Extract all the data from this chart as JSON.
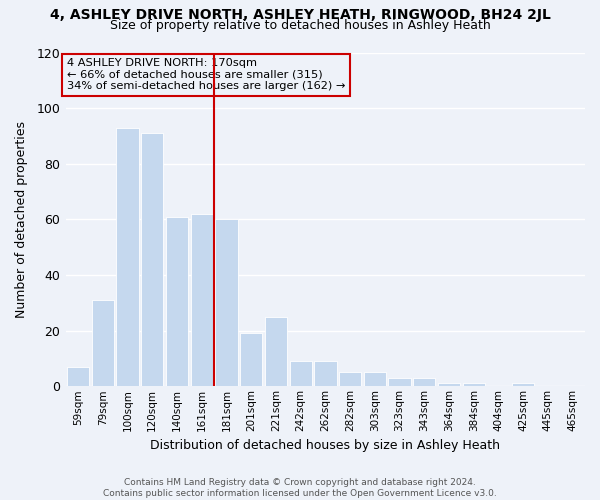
{
  "title": "4, ASHLEY DRIVE NORTH, ASHLEY HEATH, RINGWOOD, BH24 2JL",
  "subtitle": "Size of property relative to detached houses in Ashley Heath",
  "xlabel": "Distribution of detached houses by size in Ashley Heath",
  "ylabel": "Number of detached properties",
  "annotation_line1": "4 ASHLEY DRIVE NORTH: 170sqm",
  "annotation_line2": "← 66% of detached houses are smaller (315)",
  "annotation_line3": "34% of semi-detached houses are larger (162) →",
  "bar_color": "#c5d8ee",
  "highlight_color": "#cc0000",
  "categories": [
    "59sqm",
    "79sqm",
    "100sqm",
    "120sqm",
    "140sqm",
    "161sqm",
    "181sqm",
    "201sqm",
    "221sqm",
    "242sqm",
    "262sqm",
    "282sqm",
    "303sqm",
    "323sqm",
    "343sqm",
    "364sqm",
    "384sqm",
    "404sqm",
    "425sqm",
    "445sqm",
    "465sqm"
  ],
  "values": [
    7,
    31,
    93,
    91,
    61,
    62,
    60,
    19,
    25,
    9,
    9,
    5,
    5,
    3,
    3,
    1,
    1,
    0,
    1,
    0,
    0
  ],
  "red_line_index": 6,
  "ylim": [
    0,
    120
  ],
  "yticks": [
    0,
    20,
    40,
    60,
    80,
    100,
    120
  ],
  "footer_line1": "Contains HM Land Registry data © Crown copyright and database right 2024.",
  "footer_line2": "Contains public sector information licensed under the Open Government Licence v3.0.",
  "bg_color": "#eef2f9",
  "grid_color": "#d8dde8"
}
